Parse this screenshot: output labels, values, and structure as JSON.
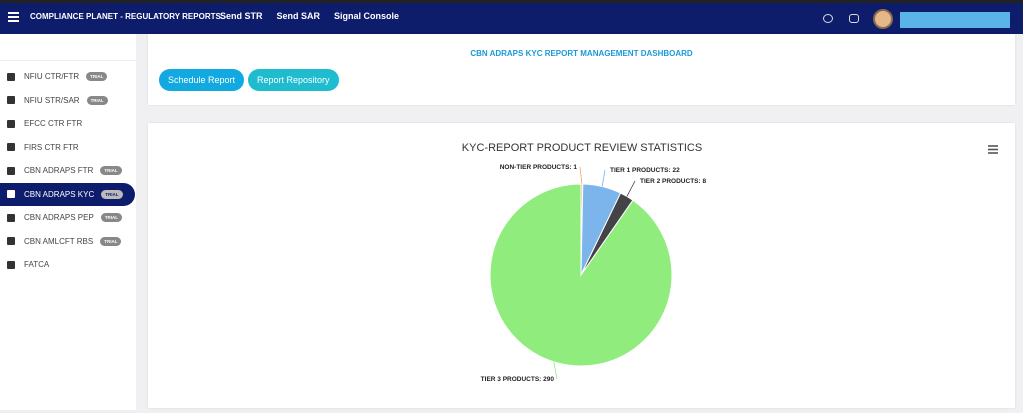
{
  "nav": {
    "brand": "COMPLIANCE PLANET - REGULATORY REPORTS",
    "links": [
      "Send STR",
      "Send SAR",
      "Signal Console"
    ]
  },
  "sidebar": [
    {
      "label": "NFIU CTR/FTR",
      "badge": "TRIAL"
    },
    {
      "label": "NFIU STR/SAR",
      "badge": "TRIAL"
    },
    {
      "label": "EFCC CTR FTR"
    },
    {
      "label": "FIRS CTR FTR"
    },
    {
      "label": "CBN ADRAPS FTR",
      "badge": "TRIAL"
    },
    {
      "label": "CBN ADRAPS KYC",
      "badge": "TRIAL",
      "selected": true
    },
    {
      "label": "CBN ADRAPS PEP",
      "badge": "TRIAL"
    },
    {
      "label": "CBN AMLCFT RBS",
      "badge": "TRIAL"
    },
    {
      "label": "FATCA"
    }
  ],
  "dashboard": {
    "title": "CBN ADRAPS KYC REPORT MANAGEMENT DASHBOARD",
    "buttons": [
      "Schedule Report",
      "Report Repository"
    ]
  },
  "chart_data": {
    "type": "pie",
    "title": "KYC-REPORT PRODUCT REVIEW STATISTICS",
    "values": [
      1,
      22,
      8,
      290
    ],
    "value_labels": [
      "NON-TIER PRODUCTS: 1",
      "TIER 1 PRODUCTS: 22",
      "TIER 2 PRODUCTS: 8",
      "TIER 3 PRODUCTS: 290"
    ],
    "colors": [
      "#f7a35c",
      "#7cb5ec",
      "#434348",
      "#90ed7d"
    ]
  }
}
